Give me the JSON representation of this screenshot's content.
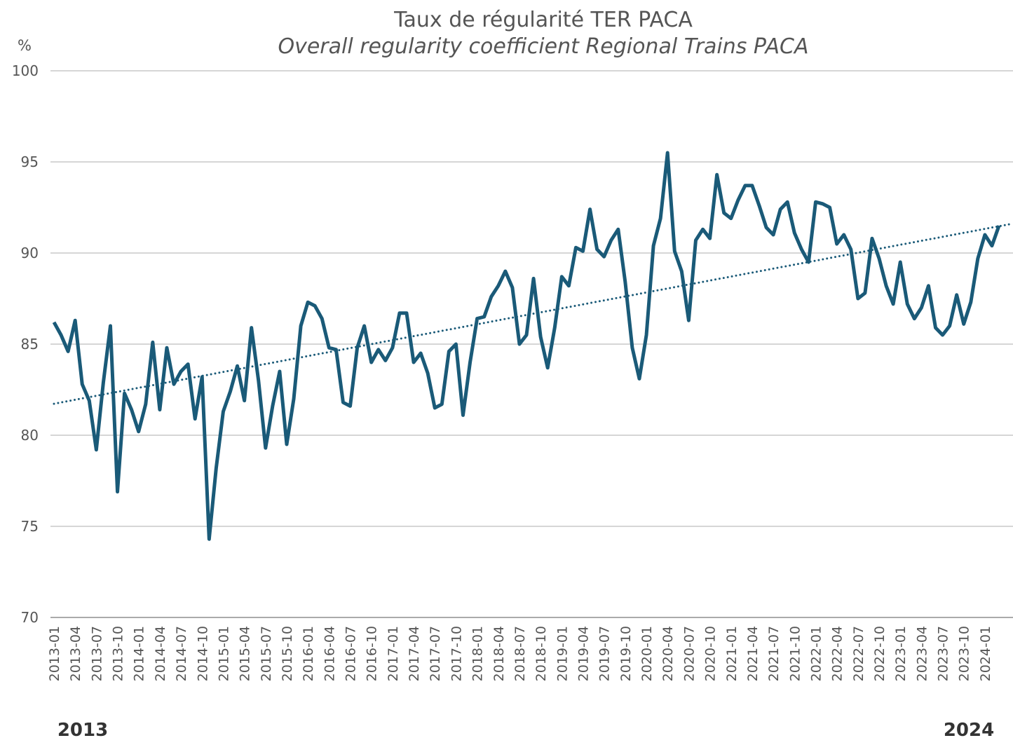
{
  "chart_data": {
    "type": "line",
    "title": "Taux de régularité TER PACA",
    "subtitle": "Overall regularity coefficient Regional Trains PACA",
    "y_label": "%",
    "annotations": [
      "2013",
      "2024"
    ],
    "categories": [
      "2013-01",
      null,
      null,
      "2013-04",
      null,
      null,
      "2013-07",
      null,
      null,
      "2013-10",
      null,
      null,
      "2014-01",
      null,
      null,
      "2014-04",
      null,
      null,
      "2014-07",
      null,
      null,
      "2014-10",
      null,
      null,
      "2015-01",
      null,
      null,
      "2015-04",
      null,
      null,
      "2015-07",
      null,
      null,
      "2015-10",
      null,
      null,
      "2016-01",
      null,
      null,
      "2016-04",
      null,
      null,
      "2016-07",
      null,
      null,
      "2016-10",
      null,
      null,
      "2017-01",
      null,
      null,
      "2017-04",
      null,
      null,
      "2017-07",
      null,
      null,
      "2017-10",
      null,
      null,
      "2018-01",
      null,
      null,
      "2018-04",
      null,
      null,
      "2018-07",
      null,
      null,
      "2018-10",
      null,
      null,
      "2019-01",
      null,
      null,
      "2019-04",
      null,
      null,
      "2019-07",
      null,
      null,
      "2019-10",
      null,
      null,
      "2020-01",
      null,
      null,
      "2020-04",
      null,
      null,
      "2020-07",
      null,
      null,
      "2020-10",
      null,
      null,
      "2021-01",
      null,
      null,
      "2021-04",
      null,
      null,
      "2021-07",
      null,
      null,
      "2021-10",
      null,
      null,
      "2022-01",
      null,
      null,
      "2022-04",
      null,
      null,
      "2022-07",
      null,
      null,
      "2022-10",
      null,
      null,
      "2023-01",
      null,
      null,
      "2023-04",
      null,
      null,
      "2023-07",
      null,
      null,
      "2023-10",
      null,
      null,
      "2024-01",
      null,
      null
    ],
    "series": [
      {
        "color": "#1a5a78",
        "values": [
          86.2,
          85.5,
          84.6,
          86.3,
          82.8,
          81.9,
          79.2,
          82.9,
          86.0,
          76.9,
          82.3,
          81.4,
          80.2,
          81.7,
          85.1,
          81.4,
          84.8,
          82.8,
          83.5,
          83.9,
          80.9,
          83.2,
          74.3,
          78.2,
          81.3,
          82.4,
          83.8,
          81.9,
          85.9,
          83.0,
          79.3,
          81.6,
          83.5,
          79.5,
          82.0,
          86.0,
          87.3,
          87.1,
          86.4,
          84.8,
          84.7,
          81.8,
          81.6,
          84.8,
          86.0,
          84.0,
          84.7,
          84.1,
          84.8,
          86.7,
          86.7,
          84.0,
          84.5,
          83.4,
          81.5,
          81.7,
          84.6,
          85.0,
          81.1,
          84.0,
          86.4,
          86.5,
          87.6,
          88.2,
          89.0,
          88.1,
          85.0,
          85.5,
          88.6,
          85.4,
          83.7,
          85.9,
          88.7,
          88.2,
          90.3,
          90.1,
          92.4,
          90.2,
          89.8,
          90.7,
          91.3,
          88.4,
          84.8,
          83.1,
          85.5,
          90.4,
          91.9,
          95.5,
          90.1,
          89.0,
          86.3,
          90.7,
          91.3,
          90.8,
          94.3,
          92.2,
          91.9,
          92.9,
          93.7,
          93.7,
          92.6,
          91.4,
          91.0,
          92.4,
          92.8,
          91.1,
          90.2,
          89.5,
          92.8,
          92.7,
          92.5,
          90.5,
          91.0,
          90.2,
          87.5,
          87.8,
          90.8,
          89.7,
          88.2,
          87.2,
          89.5,
          87.2,
          86.4,
          87.0,
          88.2,
          85.9,
          85.5,
          86.0,
          87.7,
          86.1,
          87.3,
          89.7,
          91.0,
          90.4,
          91.5
        ]
      }
    ],
    "trendline": "linear",
    "trend_color": "#1a5a78",
    "ylim": [
      70,
      100
    ],
    "yticks": [
      70,
      75,
      80,
      85,
      90,
      95,
      100
    ],
    "grid": true
  }
}
